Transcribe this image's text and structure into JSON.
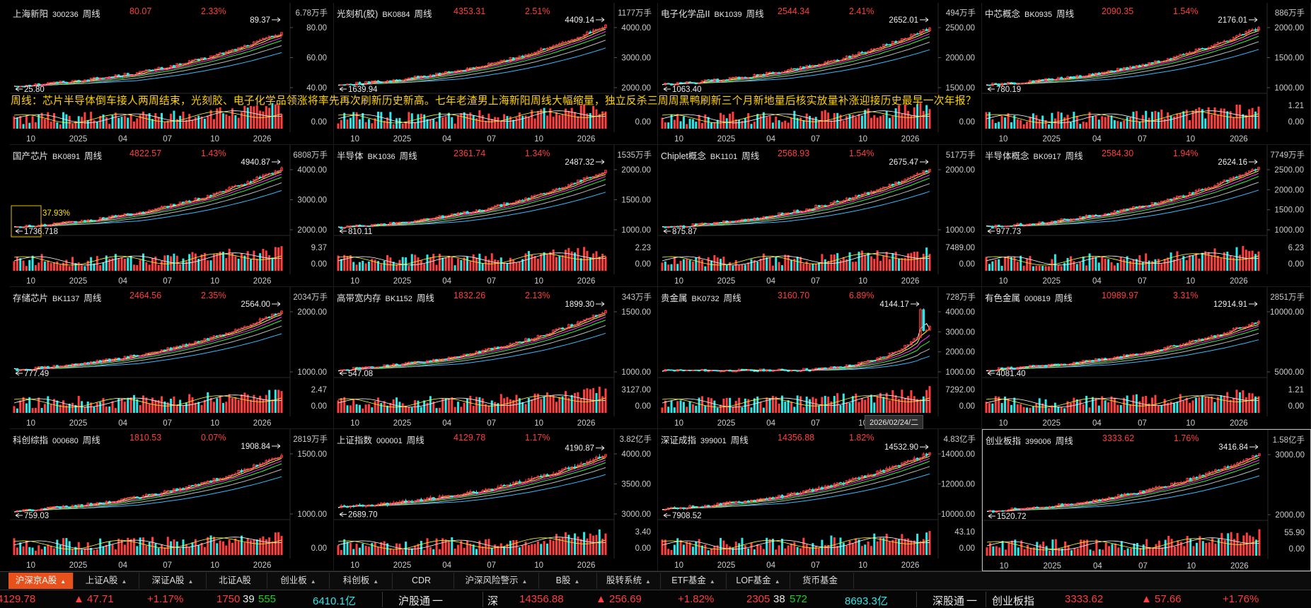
{
  "news_text": "周线：芯片半导体倒车接人两周结束，光刻胶、电子化学品领涨将率先再次刷新历史新高。七年老渣男上海新阳周线大幅缩量，独立反杀三周周黑鸭刷新三个月新地量后核实放量补涨迎接历史最早一次年报？",
  "tooltip_date": "2026/02/24/二",
  "colors": {
    "up": "#ff3e3e",
    "down": "#2ee8e8",
    "ma5": "#ffffff",
    "ma10": "#ffff33",
    "ma20": "#ff33ff",
    "ma30": "#33ff33",
    "ma60": "#bbbbbb",
    "ma120": "#33bbff"
  },
  "x_ticks": [
    "10",
    "2025",
    "04",
    "07",
    "10",
    "2026"
  ],
  "panels": [
    {
      "name": "上海新阳",
      "code": "300236",
      "period": "周线",
      "price": "80.07",
      "change": "2.33%",
      "vol_total": "6.78万手",
      "high": "89.37",
      "low": "25.80",
      "y_ticks": [
        "80.00",
        "60.00",
        "40.00"
      ],
      "vol_ticks": [
        "",
        "0.00"
      ],
      "start": 25.8,
      "end": 80.07,
      "hi": 89.37
    },
    {
      "name": "光刻机(胶)",
      "code": "BK0884",
      "period": "周线",
      "price": "4353.31",
      "change": "2.51%",
      "vol_total": "1177万手",
      "high": "4409.14",
      "low": "1639.94",
      "y_ticks": [
        "4000.00",
        "3000.00",
        "2000.00"
      ],
      "vol_ticks": [
        "",
        "0.00"
      ],
      "start": 1639.94,
      "end": 4353.31,
      "hi": 4409.14
    },
    {
      "name": "电子化学品II",
      "code": "BK1039",
      "period": "周线",
      "price": "2544.34",
      "change": "2.41%",
      "vol_total": "494万手",
      "high": "2652.01",
      "low": "1063.40",
      "y_ticks": [
        "2500.00",
        "2000.00",
        "1500.00"
      ],
      "vol_ticks": [
        "",
        "0.00"
      ],
      "start": 1063.4,
      "end": 2544.34,
      "hi": 2652.01
    },
    {
      "name": "中芯概念",
      "code": "BK0935",
      "period": "周线",
      "price": "2090.35",
      "change": "1.54%",
      "vol_total": "886万手",
      "high": "2176.01",
      "low": "780.19",
      "y_ticks": [
        "2000.00",
        "1500.00",
        "1000.00"
      ],
      "vol_ticks": [
        "1.21",
        "0.00"
      ],
      "start": 780.19,
      "end": 2090.35,
      "hi": 2176.01
    },
    {
      "name": "国产芯片",
      "code": "BK0891",
      "period": "周线",
      "price": "4822.57",
      "change": "1.43%",
      "vol_total": "6808万手",
      "high": "4940.87",
      "low": "1736.718",
      "y_ticks": [
        "4000.00",
        "3000.00",
        "2000.00"
      ],
      "vol_ticks": [
        "9.37",
        "0.00"
      ],
      "start": 1736.72,
      "end": 4822.57,
      "hi": 4940.87,
      "note": "37.93%"
    },
    {
      "name": "半导体",
      "code": "BK1036",
      "period": "周线",
      "price": "2361.74",
      "change": "1.34%",
      "vol_total": "1535万手",
      "high": "2487.32",
      "low": "810.11",
      "y_ticks": [
        "2000.00",
        "1500.00",
        "1000.00"
      ],
      "vol_ticks": [
        "2.23",
        "0.00"
      ],
      "start": 810.11,
      "end": 2361.74,
      "hi": 2487.32
    },
    {
      "name": "Chiplet概念",
      "code": "BK1101",
      "period": "周线",
      "price": "2568.93",
      "change": "1.54%",
      "vol_total": "517万手",
      "high": "2675.47",
      "low": "875.87",
      "y_ticks": [
        "2000.00",
        "1000.00"
      ],
      "vol_ticks": [
        "7489.00",
        "0.00"
      ],
      "start": 875.87,
      "end": 2568.93,
      "hi": 2675.47
    },
    {
      "name": "半导体概念",
      "code": "BK0917",
      "period": "周线",
      "price": "2584.30",
      "change": "1.94%",
      "vol_total": "7749万手",
      "high": "2624.16",
      "low": "977.73",
      "y_ticks": [
        "2500.00",
        "2000.00",
        "1500.00",
        "1000.00"
      ],
      "vol_ticks": [
        "6.23",
        "0.00"
      ],
      "start": 977.73,
      "end": 2584.3,
      "hi": 2624.16
    },
    {
      "name": "存储芯片",
      "code": "BK1137",
      "period": "周线",
      "price": "2464.56",
      "change": "2.35%",
      "vol_total": "2034万手",
      "high": "2564.00",
      "low": "777.49",
      "y_ticks": [
        "2000.00",
        "1000.00"
      ],
      "vol_ticks": [
        "2.47",
        "0.00"
      ],
      "start": 777.49,
      "end": 2464.56,
      "hi": 2564.0
    },
    {
      "name": "高带宽内存",
      "code": "BK1152",
      "period": "周线",
      "price": "1832.26",
      "change": "2.13%",
      "vol_total": "343万手",
      "high": "1899.30",
      "low": "547.08",
      "y_ticks": [
        "1500.00",
        "1000.00"
      ],
      "vol_ticks": [
        "3127.00",
        "0.00"
      ],
      "start": 547.08,
      "end": 1832.26,
      "hi": 1899.3
    },
    {
      "name": "贵金属",
      "code": "BK0732",
      "period": "周线",
      "price": "3160.70",
      "change": "6.89%",
      "vol_total": "728万手",
      "high": "4144.17",
      "low": "",
      "y_ticks": [
        "4000.00",
        "3000.00",
        "2000.00",
        "1000.00"
      ],
      "vol_ticks": [
        "7292.00",
        "0.00"
      ],
      "start": 870,
      "end": 3160.7,
      "hi": 4144.17,
      "spike": true
    },
    {
      "name": "有色金属",
      "code": "000819",
      "period": "周线",
      "price": "10989.97",
      "change": "3.31%",
      "vol_total": "2851万手",
      "high": "12914.91",
      "low": "4081.40",
      "y_ticks": [
        "10000.00",
        "5000.00"
      ],
      "vol_ticks": [
        "1.21",
        "0.00"
      ],
      "start": 4081.4,
      "end": 10989.97,
      "hi": 12914.91
    },
    {
      "name": "科创综指",
      "code": "000680",
      "period": "周线",
      "price": "1810.53",
      "change": "0.07%",
      "vol_total": "2819万手",
      "high": "1908.84",
      "low": "759.03",
      "y_ticks": [
        "1500.00",
        "1000.00"
      ],
      "vol_ticks": [
        "",
        "0.00"
      ],
      "start": 759.03,
      "end": 1810.53,
      "hi": 1908.84
    },
    {
      "name": "上证指数",
      "code": "000001",
      "period": "周线",
      "price": "4129.78",
      "change": "1.17%",
      "vol_total": "3.82亿手",
      "high": "4190.87",
      "low": "2689.70",
      "y_ticks": [
        "4000.00",
        "3500.00",
        "3000.00"
      ],
      "vol_ticks": [
        "3.40",
        "0.00"
      ],
      "start": 2689.7,
      "end": 4129.78,
      "hi": 4190.87
    },
    {
      "name": "深证成指",
      "code": "399001",
      "period": "周线",
      "price": "14356.88",
      "change": "1.82%",
      "vol_total": "4.83亿手",
      "high": "14532.90",
      "low": "7908.52",
      "y_ticks": [
        "14000.00",
        "12000.00",
        "10000.00"
      ],
      "vol_ticks": [
        "43.10",
        "0.00"
      ],
      "start": 7908.52,
      "end": 14356.88,
      "hi": 14532.9
    },
    {
      "name": "创业板指",
      "code": "399006",
      "period": "周线",
      "price": "3333.62",
      "change": "1.76%",
      "vol_total": "1.58亿手",
      "high": "3416.84",
      "low": "1520.72",
      "y_ticks": [
        "3000.00",
        "2000.00"
      ],
      "vol_ticks": [
        "55.90",
        "0.00"
      ],
      "start": 1520.72,
      "end": 3333.62,
      "hi": 3416.84
    }
  ],
  "tabs": [
    {
      "label": "沪深京A股",
      "arrow": "▲",
      "active": true
    },
    {
      "label": "上证A股",
      "arrow": "▲"
    },
    {
      "label": "深证A股",
      "arrow": "▲"
    },
    {
      "label": "北证A股",
      "arrow": ""
    },
    {
      "label": "创业板",
      "arrow": "▲"
    },
    {
      "label": "科创板",
      "arrow": "▲"
    },
    {
      "label": "CDR",
      "arrow": ""
    },
    {
      "label": "沪深风险警示",
      "arrow": "▲"
    },
    {
      "label": "B股",
      "arrow": "▲"
    },
    {
      "label": "股转系统",
      "arrow": "▲"
    },
    {
      "label": "ETF基金",
      "arrow": "▲"
    },
    {
      "label": "LOF基金",
      "arrow": "▲"
    },
    {
      "label": "货币基金",
      "arrow": ""
    }
  ],
  "status": {
    "sh_index": "4129.78",
    "sh_chg": "▲ 47.71",
    "sh_pct": "+1.17%",
    "sh_up": "1750",
    "sh_flat": "39",
    "sh_down": "555",
    "sh_amount": "6410.1亿",
    "hgt_label": "沪股通",
    "hgt_val": "一",
    "sz_label": "深",
    "sz_index": "14356.88",
    "sz_chg": "▲ 256.69",
    "sz_pct": "+1.82%",
    "sz_up": "2305",
    "sz_flat": "38",
    "sz_down": "572",
    "sz_amount": "8693.3亿",
    "sgt_label": "深股通",
    "sgt_val": "一",
    "cyb_label": "创业板指",
    "cyb_index": "3333.62",
    "cyb_chg": "▲ 57.66",
    "cyb_pct": "+1.76%"
  }
}
